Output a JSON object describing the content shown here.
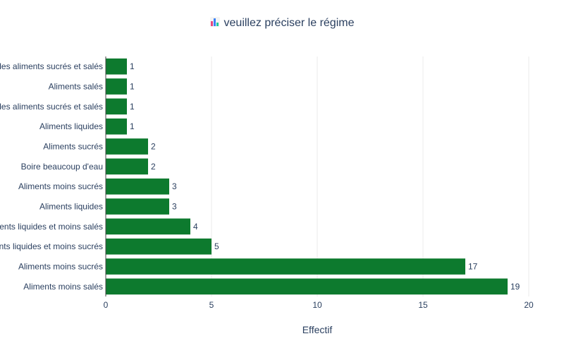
{
  "chart_data": {
    "type": "bar",
    "orientation": "horizontal",
    "title": "veuillez préciser le régime",
    "title_icon": "bar-chart-icon",
    "xlabel": "Effectif",
    "ylabel": "",
    "xlim": [
      0,
      20
    ],
    "xticks": [
      0,
      5,
      10,
      15,
      20
    ],
    "grid": true,
    "bar_color": "#0d7a2e",
    "categories": [
      "Aliments moins salés",
      "Aliments moins sucrés",
      "Aliments liquides et moins sucrés",
      "Aliments liquides et moins salés",
      "Aliments liquides",
      "Aliments moins sucrés",
      "Boire beaucoup d'eau",
      "Aliments sucrés",
      "Aliments liquides",
      "Aliments moins des aliments sucrés et salés",
      "Aliments salés",
      "Aliments moins des aliments sucrés et salés"
    ],
    "values": [
      19,
      17,
      5,
      4,
      3,
      3,
      2,
      2,
      1,
      1,
      1,
      1
    ]
  }
}
